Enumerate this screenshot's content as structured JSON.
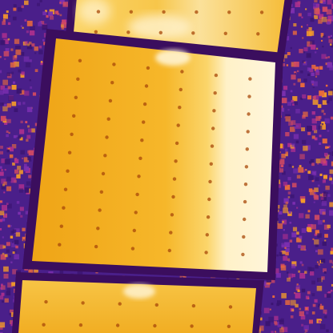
{
  "image": {
    "kind": "thermal-infrared-photo",
    "subject": "solar-panel-modules",
    "palette": {
      "background_base": "#4a1f8a",
      "background_noise": [
        "#7b2fb0",
        "#b0308e",
        "#d24a62",
        "#e86a3c",
        "#f29a2a",
        "#3a1470"
      ],
      "panel_frame": "#3b0e5e",
      "panel_base": "#f5b21a",
      "panel_warm": "#f8c94a",
      "hotspot": "#fff3d0",
      "cell_dot": "#a8480a"
    },
    "panels": [
      {
        "name": "top-panel",
        "hotspot": "center-strip"
      },
      {
        "name": "middle-panel",
        "hotspot": "right-column"
      },
      {
        "name": "bottom-panel",
        "hotspot": "top-center-spot"
      }
    ]
  }
}
